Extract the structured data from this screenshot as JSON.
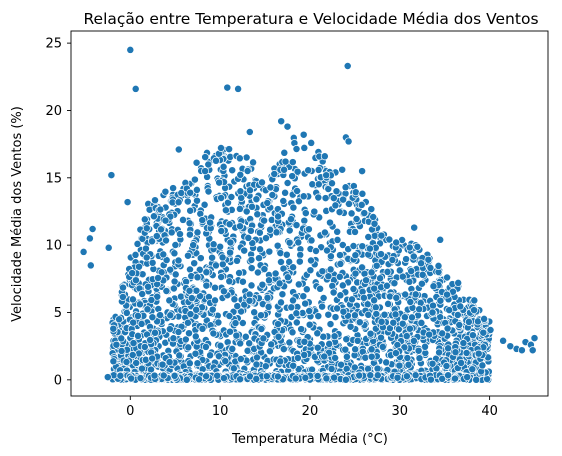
{
  "chart_data": {
    "type": "scatter",
    "title": "Relação entre Temperatura e Velocidade Média dos Ventos",
    "xlabel": "Temperatura Média (°C)",
    "ylabel": "Velocidade Média dos Ventos (%)",
    "xlim": [
      -6.6,
      46.5
    ],
    "ylim": [
      -1.2,
      25.9
    ],
    "xticks": [
      0,
      10,
      20,
      30,
      40
    ],
    "yticks": [
      0,
      5,
      10,
      15,
      20,
      25
    ],
    "grid": false,
    "legend": "none",
    "marker_color": "#1f77b4",
    "marker_edge_color": "#ffffff",
    "envelope": [
      [
        -2,
        4.5
      ],
      [
        0,
        9
      ],
      [
        2,
        13.5
      ],
      [
        5,
        14.5
      ],
      [
        8,
        16.5
      ],
      [
        10,
        17.5
      ],
      [
        12,
        18
      ],
      [
        15,
        15
      ],
      [
        18,
        18
      ],
      [
        20,
        17.5
      ],
      [
        23,
        16
      ],
      [
        26,
        14
      ],
      [
        28,
        11
      ],
      [
        30,
        10.5
      ],
      [
        32,
        10
      ],
      [
        35,
        8
      ],
      [
        38,
        6
      ],
      [
        40,
        4.5
      ],
      [
        42,
        2.8
      ],
      [
        45,
        2.8
      ]
    ],
    "outliers": [
      {
        "x": 0,
        "y": 24.5
      },
      {
        "x": 0.6,
        "y": 21.6
      },
      {
        "x": 10.8,
        "y": 21.7
      },
      {
        "x": 12,
        "y": 21.6
      },
      {
        "x": 24.2,
        "y": 23.3
      },
      {
        "x": 16.8,
        "y": 19.2
      },
      {
        "x": 17.5,
        "y": 18.8
      },
      {
        "x": 13.3,
        "y": 18.4
      },
      {
        "x": 19.3,
        "y": 18.2
      },
      {
        "x": 24,
        "y": 18
      },
      {
        "x": 24.3,
        "y": 17.7
      },
      {
        "x": -2.1,
        "y": 15.2
      },
      {
        "x": -5.2,
        "y": 9.5
      },
      {
        "x": -4.5,
        "y": 10.5
      },
      {
        "x": -4.2,
        "y": 11.2
      },
      {
        "x": -4.4,
        "y": 8.5
      },
      {
        "x": -2.4,
        "y": 9.8
      },
      {
        "x": -0.3,
        "y": 13.2
      },
      {
        "x": 34.5,
        "y": 10.4
      },
      {
        "x": 31.6,
        "y": 11.3
      },
      {
        "x": 29.6,
        "y": 10.2
      },
      {
        "x": 25.8,
        "y": 15.5
      },
      {
        "x": 5.4,
        "y": 17.1
      },
      {
        "x": -2.5,
        "y": 0.2
      },
      {
        "x": -1.1,
        "y": 0.3
      },
      {
        "x": 0.1,
        "y": 0.1
      },
      {
        "x": 37.5,
        "y": 0.2
      },
      {
        "x": 39.3,
        "y": 3.5
      },
      {
        "x": 40.1,
        "y": 3.7
      },
      {
        "x": 41.5,
        "y": 2.9
      },
      {
        "x": 42.3,
        "y": 2.5
      },
      {
        "x": 43,
        "y": 2.3
      },
      {
        "x": 43.6,
        "y": 2.2
      },
      {
        "x": 44,
        "y": 2.8
      },
      {
        "x": 44.6,
        "y": 2.6
      },
      {
        "x": 45,
        "y": 3.1
      },
      {
        "x": 44.8,
        "y": 2.2
      },
      {
        "x": 38.3,
        "y": 5.9
      },
      {
        "x": 36.5,
        "y": 7.2
      }
    ]
  }
}
